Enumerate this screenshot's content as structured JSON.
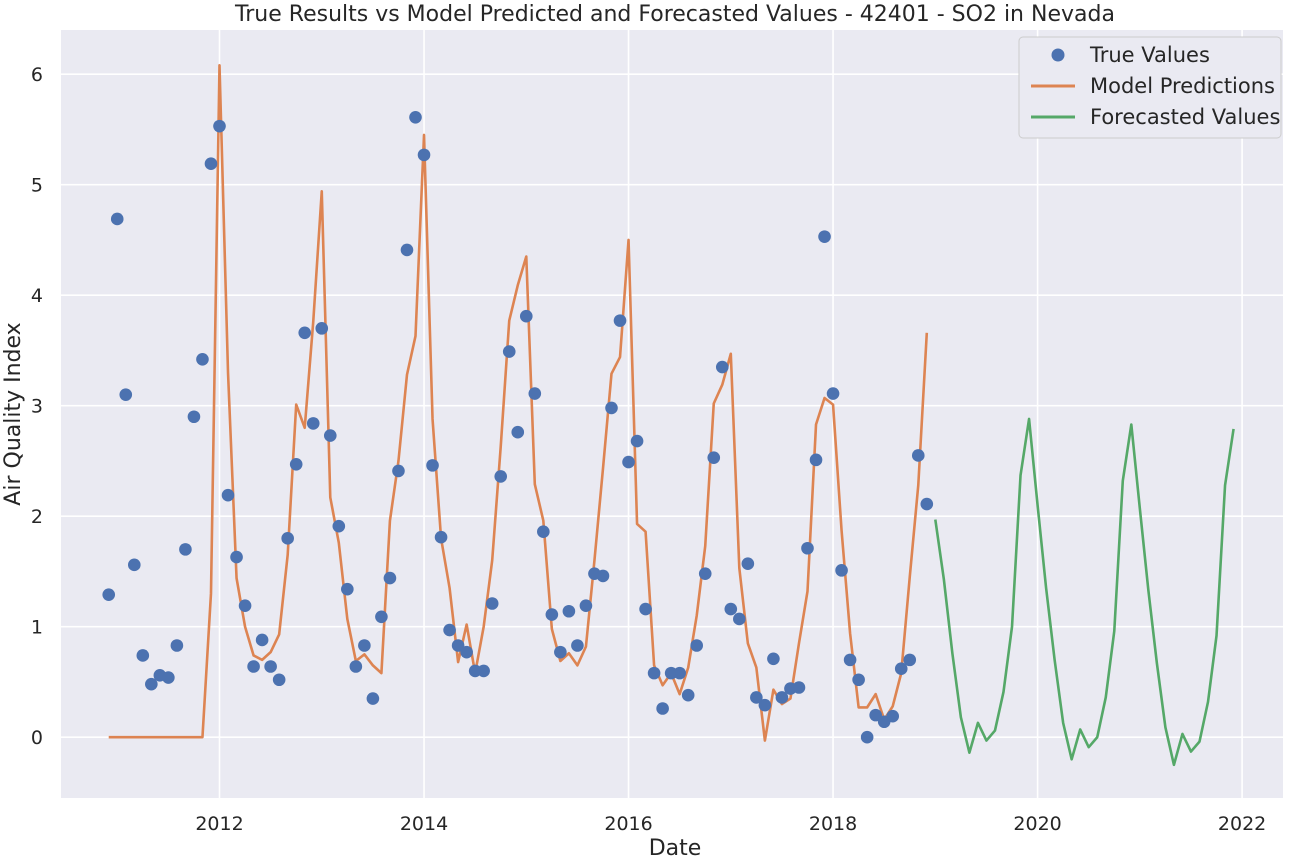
{
  "chart_data": {
    "type": "line",
    "title": "True Results vs Model Predicted and Forecasted Values - 42401 - SO2 in Nevada",
    "xlabel": "Date",
    "ylabel": "Air Quality Index",
    "xlim": [
      2010.45,
      2022.4
    ],
    "ylim": [
      -0.55,
      6.4
    ],
    "x_ticks": [
      2012,
      2014,
      2016,
      2018,
      2020,
      2022
    ],
    "x_tick_labels": [
      "2012",
      "2014",
      "2016",
      "2018",
      "2020",
      "2022"
    ],
    "y_ticks": [
      0,
      1,
      2,
      3,
      4,
      5,
      6
    ],
    "y_tick_labels": [
      "0",
      "1",
      "2",
      "3",
      "4",
      "5",
      "6"
    ],
    "grid": true,
    "legend_position": "top-right",
    "colors": {
      "background": "#EAEAF2",
      "grid": "#FFFFFF",
      "true_values": "#4C72B0",
      "model_predictions": "#DD8452",
      "forecasted_values": "#55A868"
    },
    "series": [
      {
        "name": "True Values",
        "kind": "scatter",
        "points": [
          [
            "2010-12",
            1.29
          ],
          [
            "2011-01",
            4.69
          ],
          [
            "2011-02",
            3.1
          ],
          [
            "2011-03",
            1.56
          ],
          [
            "2011-04",
            0.74
          ],
          [
            "2011-05",
            0.48
          ],
          [
            "2011-06",
            0.56
          ],
          [
            "2011-07",
            0.54
          ],
          [
            "2011-08",
            0.83
          ],
          [
            "2011-09",
            1.7
          ],
          [
            "2011-10",
            2.9
          ],
          [
            "2011-11",
            3.42
          ],
          [
            "2011-12",
            5.19
          ],
          [
            "2012-01",
            5.53
          ],
          [
            "2012-02",
            2.19
          ],
          [
            "2012-03",
            1.63
          ],
          [
            "2012-04",
            1.19
          ],
          [
            "2012-05",
            0.64
          ],
          [
            "2012-06",
            0.88
          ],
          [
            "2012-07",
            0.64
          ],
          [
            "2012-08",
            0.52
          ],
          [
            "2012-09",
            1.8
          ],
          [
            "2012-10",
            2.47
          ],
          [
            "2012-11",
            3.66
          ],
          [
            "2012-12",
            2.84
          ],
          [
            "2013-01",
            3.7
          ],
          [
            "2013-02",
            2.73
          ],
          [
            "2013-03",
            1.91
          ],
          [
            "2013-04",
            1.34
          ],
          [
            "2013-05",
            0.64
          ],
          [
            "2013-06",
            0.83
          ],
          [
            "2013-07",
            0.35
          ],
          [
            "2013-08",
            1.09
          ],
          [
            "2013-09",
            1.44
          ],
          [
            "2013-10",
            2.41
          ],
          [
            "2013-11",
            4.41
          ],
          [
            "2013-12",
            5.61
          ],
          [
            "2014-01",
            5.27
          ],
          [
            "2014-02",
            2.46
          ],
          [
            "2014-03",
            1.81
          ],
          [
            "2014-04",
            0.97
          ],
          [
            "2014-05",
            0.83
          ],
          [
            "2014-06",
            0.77
          ],
          [
            "2014-07",
            0.6
          ],
          [
            "2014-08",
            0.6
          ],
          [
            "2014-09",
            1.21
          ],
          [
            "2014-10",
            2.36
          ],
          [
            "2014-11",
            3.49
          ],
          [
            "2014-12",
            2.76
          ],
          [
            "2015-01",
            3.81
          ],
          [
            "2015-02",
            3.11
          ],
          [
            "2015-03",
            1.86
          ],
          [
            "2015-04",
            1.11
          ],
          [
            "2015-05",
            0.77
          ],
          [
            "2015-06",
            1.14
          ],
          [
            "2015-07",
            0.83
          ],
          [
            "2015-08",
            1.19
          ],
          [
            "2015-09",
            1.48
          ],
          [
            "2015-10",
            1.46
          ],
          [
            "2015-11",
            2.98
          ],
          [
            "2015-12",
            3.77
          ],
          [
            "2016-01",
            2.49
          ],
          [
            "2016-02",
            2.68
          ],
          [
            "2016-03",
            1.16
          ],
          [
            "2016-04",
            0.58
          ],
          [
            "2016-05",
            0.26
          ],
          [
            "2016-06",
            0.58
          ],
          [
            "2016-07",
            0.58
          ],
          [
            "2016-08",
            0.38
          ],
          [
            "2016-09",
            0.83
          ],
          [
            "2016-10",
            1.48
          ],
          [
            "2016-11",
            2.53
          ],
          [
            "2016-12",
            3.35
          ],
          [
            "2017-01",
            1.16
          ],
          [
            "2017-02",
            1.07
          ],
          [
            "2017-03",
            1.57
          ],
          [
            "2017-04",
            0.36
          ],
          [
            "2017-05",
            0.29
          ],
          [
            "2017-06",
            0.71
          ],
          [
            "2017-07",
            0.36
          ],
          [
            "2017-08",
            0.44
          ],
          [
            "2017-09",
            0.45
          ],
          [
            "2017-10",
            1.71
          ],
          [
            "2017-11",
            2.51
          ],
          [
            "2017-12",
            4.53
          ],
          [
            "2018-01",
            3.11
          ],
          [
            "2018-02",
            1.51
          ],
          [
            "2018-03",
            0.7
          ],
          [
            "2018-04",
            0.52
          ],
          [
            "2018-05",
            0.0
          ],
          [
            "2018-06",
            0.2
          ],
          [
            "2018-07",
            0.14
          ],
          [
            "2018-08",
            0.19
          ],
          [
            "2018-09",
            0.62
          ],
          [
            "2018-10",
            0.7
          ],
          [
            "2018-11",
            2.55
          ],
          [
            "2018-12",
            2.11
          ]
        ]
      },
      {
        "name": "Model Predictions",
        "kind": "line",
        "points": [
          [
            "2010-12",
            0.0
          ],
          [
            "2011-01",
            0.0
          ],
          [
            "2011-02",
            0.0
          ],
          [
            "2011-03",
            0.0
          ],
          [
            "2011-04",
            0.0
          ],
          [
            "2011-05",
            0.0
          ],
          [
            "2011-06",
            0.0
          ],
          [
            "2011-07",
            0.0
          ],
          [
            "2011-08",
            0.0
          ],
          [
            "2011-09",
            0.0
          ],
          [
            "2011-10",
            0.0
          ],
          [
            "2011-11",
            0.0
          ],
          [
            "2011-12",
            1.3
          ],
          [
            "2012-01",
            6.08
          ],
          [
            "2012-02",
            3.3
          ],
          [
            "2012-03",
            1.44
          ],
          [
            "2012-04",
            1.0
          ],
          [
            "2012-05",
            0.74
          ],
          [
            "2012-06",
            0.7
          ],
          [
            "2012-07",
            0.77
          ],
          [
            "2012-08",
            0.93
          ],
          [
            "2012-09",
            1.65
          ],
          [
            "2012-10",
            3.01
          ],
          [
            "2012-11",
            2.8
          ],
          [
            "2012-12",
            3.76
          ],
          [
            "2013-01",
            4.94
          ],
          [
            "2013-02",
            2.17
          ],
          [
            "2013-03",
            1.76
          ],
          [
            "2013-04",
            1.07
          ],
          [
            "2013-05",
            0.69
          ],
          [
            "2013-06",
            0.75
          ],
          [
            "2013-07",
            0.65
          ],
          [
            "2013-08",
            0.58
          ],
          [
            "2013-09",
            1.96
          ],
          [
            "2013-10",
            2.5
          ],
          [
            "2013-11",
            3.28
          ],
          [
            "2013-12",
            3.63
          ],
          [
            "2014-01",
            5.45
          ],
          [
            "2014-02",
            2.88
          ],
          [
            "2014-03",
            1.8
          ],
          [
            "2014-04",
            1.35
          ],
          [
            "2014-05",
            0.68
          ],
          [
            "2014-06",
            1.02
          ],
          [
            "2014-07",
            0.58
          ],
          [
            "2014-08",
            1.0
          ],
          [
            "2014-09",
            1.6
          ],
          [
            "2014-10",
            2.63
          ],
          [
            "2014-11",
            3.77
          ],
          [
            "2014-12",
            4.09
          ],
          [
            "2015-01",
            4.35
          ],
          [
            "2015-02",
            2.29
          ],
          [
            "2015-03",
            1.96
          ],
          [
            "2015-04",
            0.98
          ],
          [
            "2015-05",
            0.69
          ],
          [
            "2015-06",
            0.76
          ],
          [
            "2015-07",
            0.65
          ],
          [
            "2015-08",
            0.82
          ],
          [
            "2015-09",
            1.6
          ],
          [
            "2015-10",
            2.43
          ],
          [
            "2015-11",
            3.29
          ],
          [
            "2015-12",
            3.44
          ],
          [
            "2016-01",
            4.5
          ],
          [
            "2016-02",
            1.93
          ],
          [
            "2016-03",
            1.86
          ],
          [
            "2016-04",
            0.65
          ],
          [
            "2016-05",
            0.47
          ],
          [
            "2016-06",
            0.58
          ],
          [
            "2016-07",
            0.39
          ],
          [
            "2016-08",
            0.63
          ],
          [
            "2016-09",
            1.1
          ],
          [
            "2016-10",
            1.73
          ],
          [
            "2016-11",
            3.02
          ],
          [
            "2016-12",
            3.19
          ],
          [
            "2017-01",
            3.47
          ],
          [
            "2017-02",
            1.53
          ],
          [
            "2017-03",
            0.85
          ],
          [
            "2017-04",
            0.63
          ],
          [
            "2017-05",
            -0.03
          ],
          [
            "2017-06",
            0.43
          ],
          [
            "2017-07",
            0.3
          ],
          [
            "2017-08",
            0.35
          ],
          [
            "2017-09",
            0.85
          ],
          [
            "2017-10",
            1.32
          ],
          [
            "2017-11",
            2.83
          ],
          [
            "2017-12",
            3.07
          ],
          [
            "2018-01",
            3.01
          ],
          [
            "2018-02",
            1.87
          ],
          [
            "2018-03",
            0.94
          ],
          [
            "2018-04",
            0.27
          ],
          [
            "2018-05",
            0.27
          ],
          [
            "2018-06",
            0.39
          ],
          [
            "2018-07",
            0.16
          ],
          [
            "2018-08",
            0.28
          ],
          [
            "2018-09",
            0.58
          ],
          [
            "2018-10",
            1.45
          ],
          [
            "2018-11",
            2.28
          ],
          [
            "2018-12",
            3.66
          ]
        ]
      },
      {
        "name": "Forecasted Values",
        "kind": "line",
        "points": [
          [
            "2019-01",
            1.97
          ],
          [
            "2019-02",
            1.43
          ],
          [
            "2019-03",
            0.76
          ],
          [
            "2019-04",
            0.18
          ],
          [
            "2019-05",
            -0.14
          ],
          [
            "2019-06",
            0.13
          ],
          [
            "2019-07",
            -0.03
          ],
          [
            "2019-08",
            0.06
          ],
          [
            "2019-09",
            0.41
          ],
          [
            "2019-10",
            1.0
          ],
          [
            "2019-11",
            2.37
          ],
          [
            "2019-12",
            2.88
          ],
          [
            "2020-01",
            2.1
          ],
          [
            "2020-02",
            1.35
          ],
          [
            "2020-03",
            0.7
          ],
          [
            "2020-04",
            0.13
          ],
          [
            "2020-05",
            -0.2
          ],
          [
            "2020-06",
            0.07
          ],
          [
            "2020-07",
            -0.09
          ],
          [
            "2020-08",
            0.0
          ],
          [
            "2020-09",
            0.36
          ],
          [
            "2020-10",
            0.96
          ],
          [
            "2020-11",
            2.32
          ],
          [
            "2020-12",
            2.83
          ],
          [
            "2021-01",
            2.07
          ],
          [
            "2021-02",
            1.33
          ],
          [
            "2021-03",
            0.67
          ],
          [
            "2021-04",
            0.09
          ],
          [
            "2021-05",
            -0.25
          ],
          [
            "2021-06",
            0.03
          ],
          [
            "2021-07",
            -0.13
          ],
          [
            "2021-08",
            -0.04
          ],
          [
            "2021-09",
            0.32
          ],
          [
            "2021-10",
            0.92
          ],
          [
            "2021-11",
            2.28
          ],
          [
            "2021-12",
            2.79
          ]
        ]
      }
    ]
  }
}
